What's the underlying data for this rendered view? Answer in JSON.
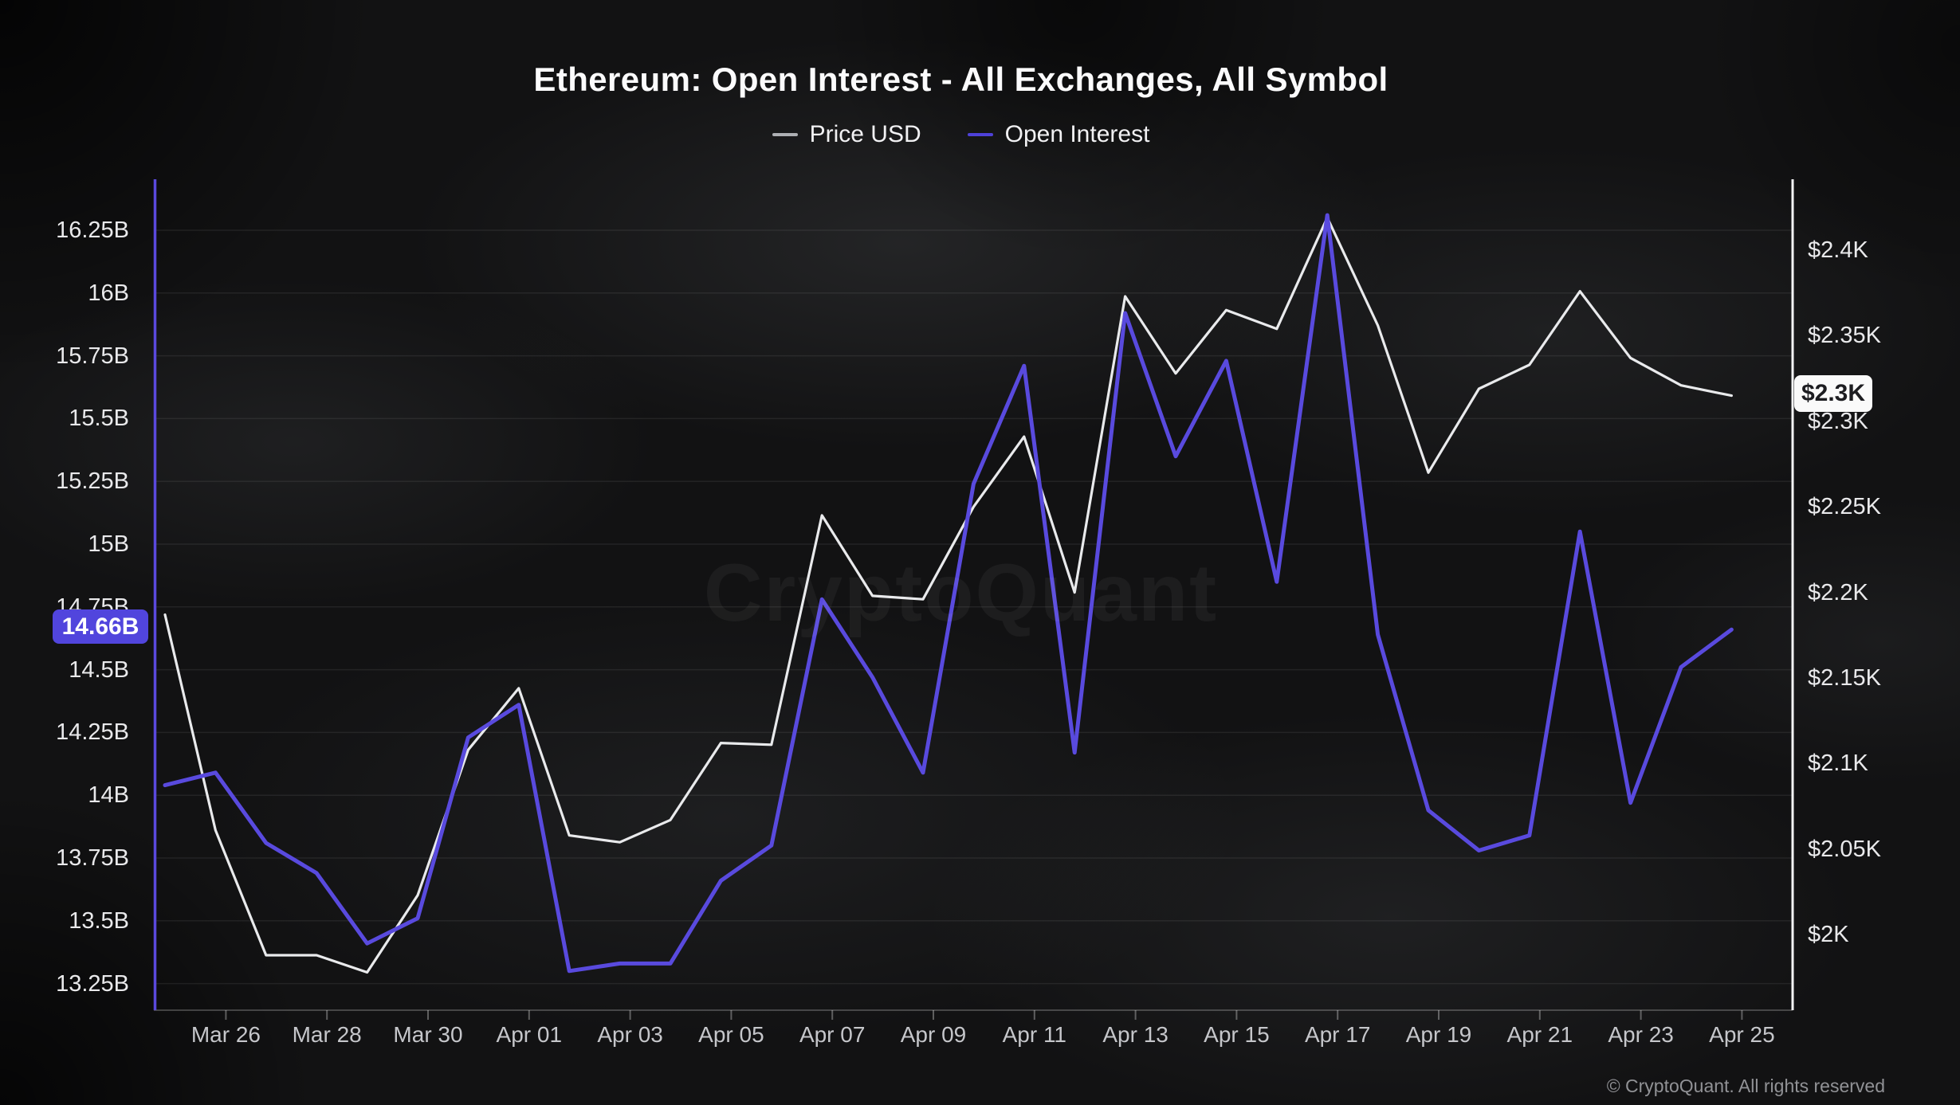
{
  "header": {
    "title": "Ethereum: Open Interest - All Exchanges, All Symbol"
  },
  "legend": {
    "items": [
      {
        "label": "Price USD",
        "color": "#aeb0b4"
      },
      {
        "label": "Open Interest",
        "color": "#4e41d9"
      }
    ]
  },
  "badges": {
    "open_interest": "14.66B",
    "price": "$2.3K"
  },
  "watermark": "CryptoQuant",
  "footer": {
    "copyright": "© CryptoQuant. All rights reserved"
  },
  "colors": {
    "price_line": "#e9eaec",
    "open_interest_line": "#594ade",
    "grid": "rgba(255,255,255,0.075)",
    "baseline": "rgba(255,255,255,0.22)",
    "tick": "rgba(255,255,255,0.32)",
    "left_axis_line": "#5a49dd",
    "right_axis_line": "#f4f4f6"
  },
  "chart_data": {
    "type": "line",
    "title": "Ethereum: Open Interest - All Exchanges, All Symbol",
    "grid": "horizontal",
    "legend_position": "top",
    "categories": [
      "Mar 25",
      "Mar 26",
      "Mar 27",
      "Mar 28",
      "Mar 29",
      "Mar 30",
      "Mar 31",
      "Apr 01",
      "Apr 02",
      "Apr 03",
      "Apr 04",
      "Apr 05",
      "Apr 06",
      "Apr 07",
      "Apr 08",
      "Apr 09",
      "Apr 10",
      "Apr 11",
      "Apr 12",
      "Apr 13",
      "Apr 14",
      "Apr 15",
      "Apr 16",
      "Apr 17",
      "Apr 18",
      "Apr 19",
      "Apr 20",
      "Apr 21",
      "Apr 22",
      "Apr 23",
      "Apr 24",
      "Apr 25"
    ],
    "x_tick_labels": [
      "Mar 26",
      "Mar 28",
      "Mar 30",
      "Apr 01",
      "Apr 03",
      "Apr 05",
      "Apr 07",
      "Apr 09",
      "Apr 11",
      "Apr 13",
      "Apr 15",
      "Apr 17",
      "Apr 19",
      "Apr 21",
      "Apr 23",
      "Apr 25"
    ],
    "series": [
      {
        "name": "Price USD",
        "axis": "right",
        "unit": "USD",
        "color": "#e9eaec",
        "values": [
          2187,
          2061,
          1988,
          1988,
          1978,
          2023,
          2108,
          2144,
          2058,
          2054,
          2067,
          2112,
          2111,
          2245,
          2198,
          2196,
          2250,
          2291,
          2200,
          2373,
          2328,
          2365,
          2354,
          2419,
          2356,
          2270,
          2319,
          2333,
          2376,
          2337,
          2321,
          2315
        ]
      },
      {
        "name": "Open Interest",
        "axis": "left",
        "unit": "billion USD",
        "color": "#594ade",
        "values": [
          14.04,
          14.09,
          13.81,
          13.69,
          13.41,
          13.51,
          14.23,
          14.36,
          13.3,
          13.33,
          13.33,
          13.66,
          13.8,
          14.78,
          14.47,
          14.09,
          15.24,
          15.71,
          14.17,
          15.92,
          15.35,
          15.73,
          14.85,
          16.31,
          14.64,
          13.94,
          13.78,
          13.84,
          15.05,
          13.97,
          14.51,
          14.66
        ]
      }
    ],
    "left_axis": {
      "series": "Open Interest",
      "tick_labels": [
        "16.25B",
        "16B",
        "15.75B",
        "15.5B",
        "15.25B",
        "15B",
        "14.75B",
        "14.5B",
        "14.25B",
        "14B",
        "13.75B",
        "13.5B",
        "13.25B"
      ],
      "tick_values": [
        16.25,
        16,
        15.75,
        15.5,
        15.25,
        15,
        14.75,
        14.5,
        14.25,
        14,
        13.75,
        13.5,
        13.25
      ],
      "range_billions": [
        13.25,
        16.25
      ]
    },
    "right_axis": {
      "series": "Price USD",
      "tick_labels": [
        "$2.4K",
        "$2.35K",
        "$2.3K",
        "$2.25K",
        "$2.2K",
        "$2.15K",
        "$2.1K",
        "$2.05K",
        "$2K"
      ],
      "tick_values": [
        2400,
        2350,
        2300,
        2250,
        2200,
        2150,
        2100,
        2050,
        2000
      ],
      "range_usd": [
        2000,
        2400
      ]
    },
    "current": {
      "open_interest": "14.66B",
      "price": "$2.3K"
    }
  }
}
